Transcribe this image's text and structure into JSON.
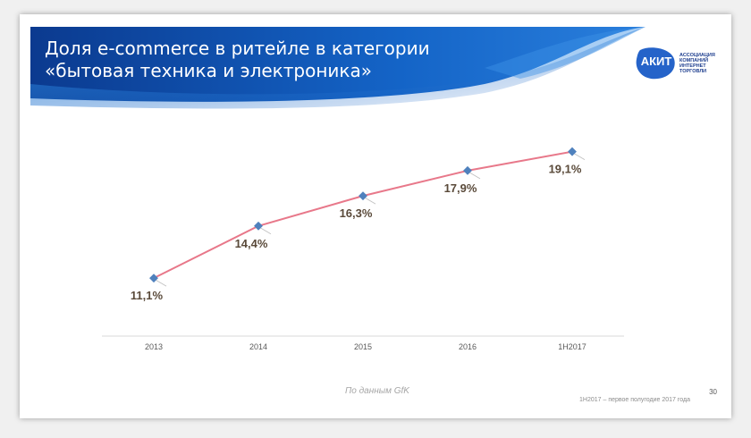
{
  "slide": {
    "title_line1": "Доля e-commerce в ритейле в категории",
    "title_line2": "«бытовая техника и электроника»",
    "source_note": "По данным GfK",
    "footnote": "1H2017 – первое полугодие 2017 года",
    "page_number": "30"
  },
  "logo": {
    "mark": "АКИТ",
    "caption": [
      "АССОЦИАЦИЯ",
      "КОМПАНИЙ",
      "ИНТЕРНЕТ",
      "ТОРГОВЛИ"
    ],
    "color": "#2563c9"
  },
  "colors": {
    "banner_dark": "#0d3a8c",
    "banner_mid": "#1565c8",
    "line": "#e8788a",
    "marker": "#4f81bd",
    "label": "#5a4a3a",
    "axis": "#d9d9d9",
    "tick": "#595959"
  },
  "chart_data": {
    "type": "line",
    "categories": [
      "2013",
      "2014",
      "2015",
      "2016",
      "1H2017"
    ],
    "series": [
      {
        "values": [
          11.1,
          14.4,
          16.3,
          17.9,
          19.1
        ]
      }
    ],
    "data_labels": [
      "11,1%",
      "14,4%",
      "16,3%",
      "17,9%",
      "19,1%"
    ],
    "ylim": [
      8,
      21
    ],
    "grid": false,
    "legend": "none"
  }
}
